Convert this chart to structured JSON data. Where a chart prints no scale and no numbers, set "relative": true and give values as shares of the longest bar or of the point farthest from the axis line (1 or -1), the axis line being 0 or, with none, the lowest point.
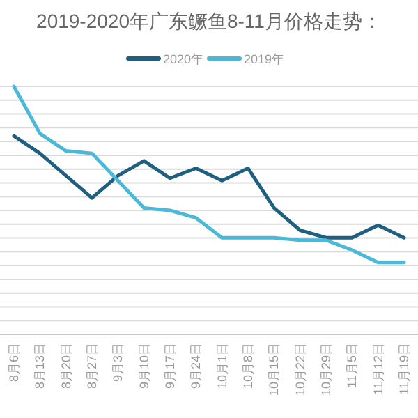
{
  "chart_data": {
    "type": "line",
    "title": "2019-2020年广东鳜鱼8-11月价格走势：",
    "relative": true,
    "grid": "y",
    "legend": "top",
    "marker": "none",
    "line_style": "solid",
    "categories": [
      "8月6日",
      "8月13日",
      "8月20日",
      "8月27日",
      "9月3日",
      "9月10日",
      "9月17日",
      "9月24日",
      "10月1日",
      "10月8日",
      "10月15日",
      "10月22日",
      "10月29日",
      "11月5日",
      "11月12日",
      "11月19日"
    ],
    "series": [
      {
        "name": "2020年",
        "color": "#1f5f80",
        "values": [
          0.8,
          0.73,
          0.64,
          0.55,
          0.64,
          0.7,
          0.63,
          0.67,
          0.62,
          0.67,
          0.51,
          0.42,
          0.39,
          0.39,
          0.44,
          0.39
        ]
      },
      {
        "name": "2019年",
        "color": "#4ab8d8",
        "values": [
          1.0,
          0.81,
          0.74,
          0.73,
          0.62,
          0.51,
          0.5,
          0.47,
          0.39,
          0.39,
          0.39,
          0.38,
          0.38,
          0.34,
          0.29,
          0.29
        ]
      }
    ]
  }
}
